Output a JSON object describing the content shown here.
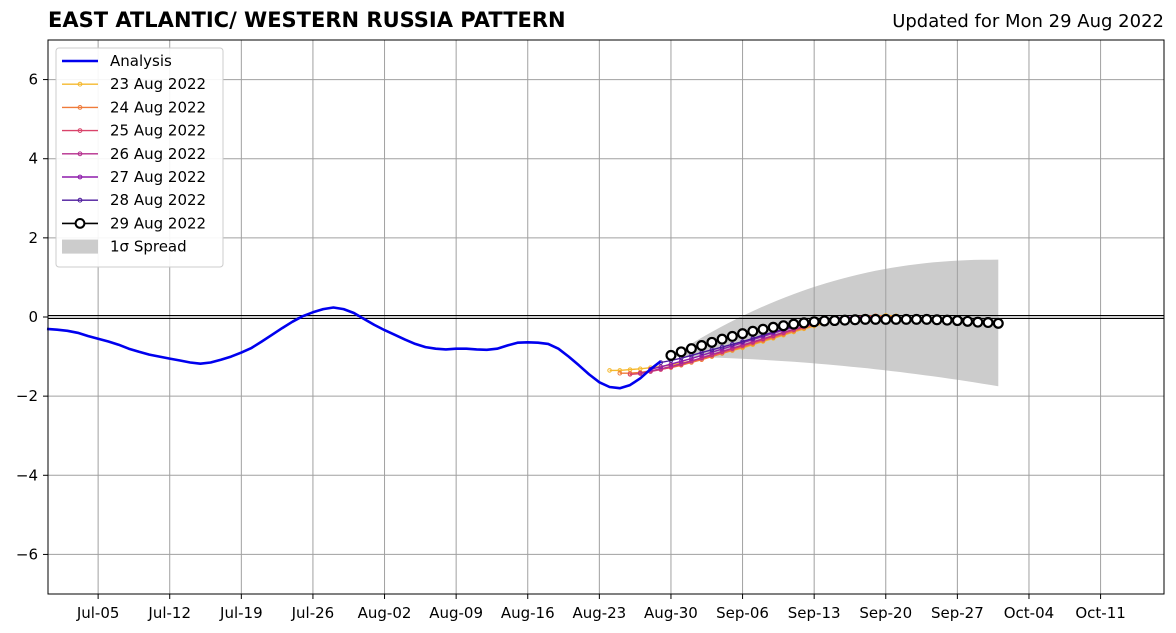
{
  "chart_data": {
    "type": "line",
    "title": "EAST ATLANTIC/ WESTERN RUSSIA PATTERN",
    "subtitle": "Updated for Mon 29 Aug 2022",
    "x_axis": {
      "tick_labels": [
        "Jul-05",
        "Jul-12",
        "Jul-19",
        "Jul-26",
        "Aug-02",
        "Aug-09",
        "Aug-16",
        "Aug-23",
        "Aug-30",
        "Sep-06",
        "Sep-13",
        "Sep-20",
        "Sep-27",
        "Oct-04",
        "Oct-11"
      ],
      "tick_days": [
        5,
        12,
        19,
        26,
        33,
        40,
        47,
        54,
        61,
        68,
        75,
        82,
        89,
        96,
        103
      ],
      "range": [
        "2022-06-30",
        "2022-10-20"
      ],
      "range_days": [
        0.1,
        109.2
      ]
    },
    "y_axis": {
      "ylim": [
        -7,
        7
      ],
      "ticks": [
        -6,
        -4,
        -2,
        0,
        2,
        4,
        6
      ],
      "tick_labels": [
        "−6",
        "−4",
        "−2",
        "0",
        "2",
        "4",
        "6"
      ]
    },
    "grid": true,
    "zero_line": true,
    "legend": {
      "placement": "top-left",
      "entries": [
        "Analysis",
        "23 Aug 2022",
        "24 Aug 2022",
        "25 Aug 2022",
        "26 Aug 2022",
        "27 Aug 2022",
        "28 Aug 2022",
        "29 Aug 2022",
        "1σ Spread"
      ]
    },
    "analysis": {
      "name": "Analysis",
      "color": "#0000ee",
      "start_date": "2022-06-30",
      "values": [
        -0.3,
        -0.32,
        -0.35,
        -0.4,
        -0.48,
        -0.55,
        -0.62,
        -0.7,
        -0.8,
        -0.88,
        -0.95,
        -1.0,
        -1.05,
        -1.1,
        -1.15,
        -1.18,
        -1.15,
        -1.08,
        -1.0,
        -0.9,
        -0.78,
        -0.62,
        -0.45,
        -0.28,
        -0.12,
        0.02,
        0.12,
        0.2,
        0.24,
        0.2,
        0.1,
        -0.05,
        -0.2,
        -0.33,
        -0.45,
        -0.57,
        -0.68,
        -0.76,
        -0.8,
        -0.82,
        -0.8,
        -0.8,
        -0.82,
        -0.83,
        -0.8,
        -0.72,
        -0.65,
        -0.64,
        -0.65,
        -0.68,
        -0.8,
        -1.0,
        -1.22,
        -1.45,
        -1.65,
        -1.77,
        -1.8,
        -1.72,
        -1.55,
        -1.32,
        -1.12
      ]
    },
    "forecasts": [
      {
        "name": "23 Aug 2022",
        "color": "#f5b82d",
        "start_date": "2022-08-24",
        "values": [
          -1.35,
          -1.35,
          -1.33,
          -1.31,
          -1.28,
          -1.25,
          -1.21,
          -1.16,
          -1.11,
          -1.05,
          -0.99,
          -0.92,
          -0.85,
          -0.78,
          -0.7,
          -0.62,
          -0.54,
          -0.46,
          -0.38,
          -0.3,
          -0.23,
          -0.16,
          -0.09,
          -0.04,
          0.0,
          0.02,
          0.03,
          0.04,
          0.03
        ]
      },
      {
        "name": "24 Aug 2022",
        "color": "#ef7b3a",
        "start_date": "2022-08-25",
        "values": [
          -1.42,
          -1.42,
          -1.4,
          -1.36,
          -1.32,
          -1.28,
          -1.22,
          -1.15,
          -1.08,
          -1.0,
          -0.92,
          -0.84,
          -0.76,
          -0.68,
          -0.6,
          -0.52,
          -0.44,
          -0.36,
          -0.28,
          -0.21,
          -0.14,
          -0.08,
          -0.03,
          0.0,
          0.02,
          0.03,
          0.02,
          0.01
        ]
      },
      {
        "name": "25 Aug 2022",
        "color": "#d9436a",
        "start_date": "2022-08-26",
        "values": [
          -1.45,
          -1.43,
          -1.38,
          -1.33,
          -1.27,
          -1.2,
          -1.12,
          -1.05,
          -0.97,
          -0.89,
          -0.81,
          -0.73,
          -0.65,
          -0.57,
          -0.49,
          -0.41,
          -0.33,
          -0.25,
          -0.18,
          -0.12,
          -0.06,
          -0.02,
          0.0,
          0.01,
          0.01,
          0.0,
          -0.01
        ]
      },
      {
        "name": "26 Aug 2022",
        "color": "#b42c8c",
        "start_date": "2022-08-27",
        "values": [
          -1.42,
          -1.37,
          -1.31,
          -1.25,
          -1.18,
          -1.11,
          -1.03,
          -0.95,
          -0.87,
          -0.79,
          -0.71,
          -0.63,
          -0.55,
          -0.47,
          -0.39,
          -0.31,
          -0.24,
          -0.17,
          -0.11,
          -0.06,
          -0.02,
          0.0,
          0.01,
          0.0,
          -0.01,
          -0.02
        ]
      },
      {
        "name": "27 Aug 2022",
        "color": "#8e1cab",
        "start_date": "2022-08-28",
        "values": [
          -1.32,
          -1.26,
          -1.19,
          -1.12,
          -1.05,
          -0.97,
          -0.89,
          -0.81,
          -0.73,
          -0.65,
          -0.57,
          -0.49,
          -0.41,
          -0.33,
          -0.26,
          -0.19,
          -0.13,
          -0.08,
          -0.04,
          -0.01,
          0.0,
          0.0,
          -0.01,
          -0.02,
          -0.03
        ]
      },
      {
        "name": "28 Aug 2022",
        "color": "#4b1a9c",
        "start_date": "2022-08-29",
        "values": [
          -1.15,
          -1.1,
          -1.04,
          -0.97,
          -0.9,
          -0.83,
          -0.76,
          -0.69,
          -0.62,
          -0.54,
          -0.46,
          -0.38,
          -0.31,
          -0.24,
          -0.18,
          -0.13,
          -0.09,
          -0.06,
          -0.04,
          -0.03,
          -0.03,
          -0.04,
          -0.05,
          -0.06
        ]
      }
    ],
    "main_forecast": {
      "name": "29 Aug 2022",
      "color": "#000000",
      "start_date": "2022-08-30",
      "values": [
        -0.97,
        -0.88,
        -0.8,
        -0.72,
        -0.64,
        -0.56,
        -0.49,
        -0.42,
        -0.36,
        -0.31,
        -0.26,
        -0.22,
        -0.18,
        -0.15,
        -0.12,
        -0.1,
        -0.09,
        -0.08,
        -0.07,
        -0.06,
        -0.06,
        -0.06,
        -0.06,
        -0.06,
        -0.06,
        -0.06,
        -0.07,
        -0.08,
        -0.09,
        -0.11,
        -0.13,
        -0.14,
        -0.16
      ]
    },
    "spread": {
      "name": "1σ Spread",
      "color": "#cccccc",
      "start_date": "2022-08-30",
      "end_date": "2022-10-01",
      "upper_end": 1.45,
      "lower_end": -1.75,
      "start_value": -1.0
    }
  }
}
